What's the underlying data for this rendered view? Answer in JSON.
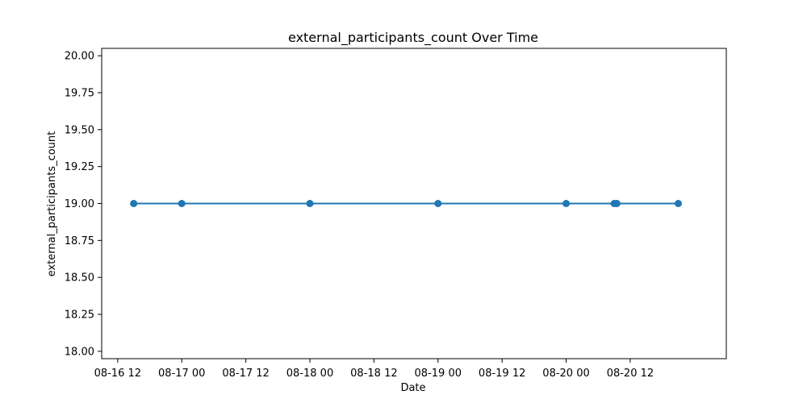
{
  "chart_data": {
    "type": "line",
    "title": "external_participants_count Over Time",
    "xlabel": "Date",
    "ylabel": "external_participants_count",
    "x_axis_type": "datetime",
    "xlim": [
      "2016-08-16 09:00",
      "2016-08-21 06:00"
    ],
    "ylim": [
      17.95,
      20.05
    ],
    "x_ticks": [
      {
        "value": "2016-08-16 12:00",
        "label": "08-16 12"
      },
      {
        "value": "2016-08-17 00:00",
        "label": "08-17 00"
      },
      {
        "value": "2016-08-17 12:00",
        "label": "08-17 12"
      },
      {
        "value": "2016-08-18 00:00",
        "label": "08-18 00"
      },
      {
        "value": "2016-08-18 12:00",
        "label": "08-18 12"
      },
      {
        "value": "2016-08-19 00:00",
        "label": "08-19 00"
      },
      {
        "value": "2016-08-19 12:00",
        "label": "08-19 12"
      },
      {
        "value": "2016-08-20 00:00",
        "label": "08-20 00"
      },
      {
        "value": "2016-08-20 12:00",
        "label": "08-20 12"
      }
    ],
    "y_ticks": [
      {
        "value": 18.0,
        "label": "18.00"
      },
      {
        "value": 18.25,
        "label": "18.25"
      },
      {
        "value": 18.5,
        "label": "18.50"
      },
      {
        "value": 18.75,
        "label": "18.75"
      },
      {
        "value": 19.0,
        "label": "19.00"
      },
      {
        "value": 19.25,
        "label": "19.25"
      },
      {
        "value": 19.5,
        "label": "19.50"
      },
      {
        "value": 19.75,
        "label": "19.75"
      },
      {
        "value": 20.0,
        "label": "20.00"
      }
    ],
    "grid": false,
    "series": [
      {
        "color": "#1f77b4",
        "marker": "circle",
        "points": [
          {
            "x": "2016-08-16 15:00",
            "y": 19
          },
          {
            "x": "2016-08-17 00:00",
            "y": 19
          },
          {
            "x": "2016-08-18 00:00",
            "y": 19
          },
          {
            "x": "2016-08-19 00:00",
            "y": 19
          },
          {
            "x": "2016-08-20 00:00",
            "y": 19
          },
          {
            "x": "2016-08-20 09:00",
            "y": 19
          },
          {
            "x": "2016-08-20 09:30",
            "y": 19
          },
          {
            "x": "2016-08-20 21:00",
            "y": 19
          }
        ]
      }
    ]
  }
}
